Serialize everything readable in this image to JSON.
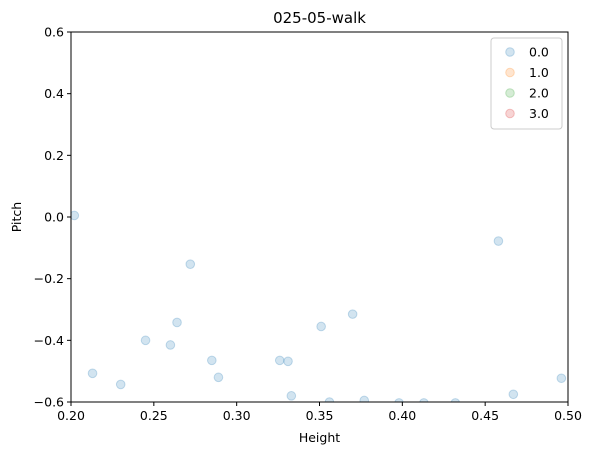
{
  "chart_data": {
    "type": "scatter",
    "title": "025-05-walk",
    "xlabel": "Height",
    "ylabel": "Pitch",
    "xlim": [
      0.2,
      0.5
    ],
    "ylim": [
      -0.6,
      0.6
    ],
    "x_ticks": [
      "0.20",
      "0.25",
      "0.30",
      "0.35",
      "0.40",
      "0.45",
      "0.50"
    ],
    "y_ticks": [
      "−0.6",
      "−0.4",
      "−0.2",
      "0.0",
      "0.2",
      "0.4",
      "0.6"
    ],
    "grid": false,
    "legend_position": "top-right",
    "marker_alpha": 0.2,
    "series": [
      {
        "name": "0.0",
        "color": "#1f77b4",
        "points": [
          [
            0.202,
            0.005
          ],
          [
            0.213,
            -0.507
          ],
          [
            0.23,
            -0.543
          ],
          [
            0.245,
            -0.4
          ],
          [
            0.26,
            -0.415
          ],
          [
            0.264,
            -0.342
          ],
          [
            0.272,
            -0.153
          ],
          [
            0.285,
            -0.465
          ],
          [
            0.289,
            -0.52
          ],
          [
            0.326,
            -0.465
          ],
          [
            0.331,
            -0.468
          ],
          [
            0.333,
            -0.58
          ],
          [
            0.351,
            -0.355
          ],
          [
            0.356,
            -0.6
          ],
          [
            0.37,
            -0.315
          ],
          [
            0.377,
            -0.595
          ],
          [
            0.398,
            -0.603
          ],
          [
            0.413,
            -0.603
          ],
          [
            0.432,
            -0.603
          ],
          [
            0.458,
            -0.078
          ],
          [
            0.467,
            -0.575
          ],
          [
            0.496,
            -0.523
          ]
        ]
      },
      {
        "name": "1.0",
        "color": "#ff7f0e",
        "points": []
      },
      {
        "name": "2.0",
        "color": "#2ca02c",
        "points": []
      },
      {
        "name": "3.0",
        "color": "#d62728",
        "points": []
      }
    ]
  }
}
